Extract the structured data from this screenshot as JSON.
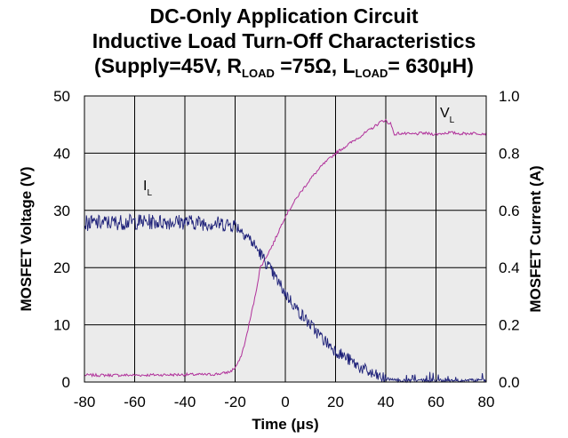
{
  "title_lines": {
    "line1": "DC-Only Application Circuit",
    "line2": "Inductive Load Turn-Off Characteristics",
    "line3_a": "(Supply=45V, R",
    "line3_sub1": "LOAD",
    "line3_b": " =75Ω, L",
    "line3_sub2": "LOAD",
    "line3_c": "= 630μH)"
  },
  "chart_data": {
    "type": "line",
    "title": "DC-Only Application Circuit Inductive Load Turn-Off Characteristics (Supply=45V, RLOAD =75Ω, LLOAD= 630μH)",
    "xlabel": "Time (μs)",
    "ylabel_left": "MOSFET Voltage (V)",
    "ylabel_right": "MOSFET Current (A)",
    "xlim": [
      -80,
      80
    ],
    "ylim_left": [
      0,
      50
    ],
    "ylim_right": [
      0,
      1.0
    ],
    "grid": true,
    "x_ticks": [
      "-80",
      "-60",
      "-40",
      "-20",
      "0",
      "20",
      "40",
      "60",
      "80"
    ],
    "y_left_ticks": [
      "0",
      "10",
      "20",
      "30",
      "40",
      "50"
    ],
    "y_right_ticks": [
      "0.0",
      "0.2",
      "0.4",
      "0.6",
      "0.8",
      "1.0"
    ],
    "annotations": [
      {
        "label": "I",
        "sub": "L",
        "series": "current"
      },
      {
        "label": "V",
        "sub": "L",
        "series": "voltage"
      }
    ],
    "series": [
      {
        "axis": "left",
        "color": "#b0309a",
        "x": [
          -80,
          -60,
          -40,
          -30,
          -25,
          -22,
          -20,
          -18,
          -16,
          -14,
          -12,
          -10,
          -5,
          0,
          5,
          10,
          15,
          20,
          25,
          30,
          35,
          38,
          40,
          41,
          42,
          43,
          44,
          45,
          50,
          55,
          60,
          65,
          70,
          75,
          80
        ],
        "y": [
          1.2,
          1.2,
          1.3,
          1.3,
          1.5,
          1.8,
          2.5,
          4,
          7,
          11,
          15,
          20,
          24,
          29,
          32.5,
          35.5,
          38,
          40,
          41.5,
          43,
          44.5,
          45.5,
          45.8,
          45,
          45.5,
          43.5,
          43.2,
          43.5,
          43.3,
          43.5,
          43.3,
          43.6,
          43.4,
          43.5,
          43.4
        ]
      },
      {
        "axis": "right",
        "color": "#1c1f78",
        "x": [
          -80,
          -60,
          -40,
          -30,
          -20,
          -15,
          -10,
          -5,
          0,
          5,
          10,
          15,
          20,
          25,
          30,
          35,
          40,
          45,
          50,
          60,
          70,
          80
        ],
        "y": [
          0.555,
          0.56,
          0.56,
          0.555,
          0.55,
          0.51,
          0.45,
          0.38,
          0.31,
          0.25,
          0.2,
          0.15,
          0.11,
          0.08,
          0.05,
          0.025,
          0.01,
          0.005,
          0.005,
          0.005,
          0.005,
          0.005
        ]
      }
    ]
  }
}
